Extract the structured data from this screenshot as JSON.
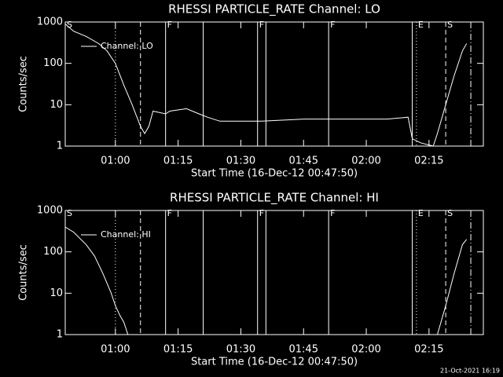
{
  "chart_data": [
    {
      "type": "line",
      "title": "RHESSI PARTICLE_RATE Channel: LO",
      "xlabel": "Start Time (16-Dec-12 00:47:50)",
      "ylabel": "Counts/sec",
      "x": [
        "00:48",
        "00:50",
        "00:53",
        "00:56",
        "00:58",
        "01:00",
        "01:02",
        "01:04",
        "01:06",
        "01:07",
        "01:08",
        "01:09",
        "01:12",
        "01:13",
        "01:17",
        "01:20",
        "01:22",
        "01:25",
        "01:35",
        "01:45",
        "01:55",
        "02:05",
        "02:10",
        "02:11",
        "02:13",
        "02:16",
        "02:17",
        "02:19",
        "02:21",
        "02:23",
        "02:24"
      ],
      "series": [
        {
          "name": "Channel: LO",
          "color": "#ffffff",
          "values": [
            900,
            600,
            450,
            300,
            200,
            100,
            30,
            10,
            3,
            2,
            3,
            7,
            6,
            7,
            8,
            6,
            5,
            4,
            4,
            4.5,
            4.5,
            4.5,
            5,
            1.5,
            1.2,
            1,
            2,
            10,
            50,
            200,
            300
          ]
        }
      ],
      "xlim": [
        "00:48",
        "02:28"
      ],
      "xticks": [
        "01:00",
        "01:15",
        "01:30",
        "01:45",
        "02:00",
        "02:15"
      ],
      "ylim": [
        1,
        1000
      ],
      "yticks": [
        1,
        10,
        100,
        1000
      ],
      "log_y": true,
      "annotations": [
        {
          "x": "00:48",
          "style": "none",
          "label": "S"
        },
        {
          "x": "01:00",
          "style": "dotted"
        },
        {
          "x": "01:06",
          "style": "dashed"
        },
        {
          "x": "01:12",
          "style": "solid",
          "label": "F"
        },
        {
          "x": "01:21",
          "style": "solid"
        },
        {
          "x": "01:34",
          "style": "solid",
          "label": "F"
        },
        {
          "x": "01:36",
          "style": "solid"
        },
        {
          "x": "01:51",
          "style": "solid",
          "label": "F"
        },
        {
          "x": "02:11",
          "style": "solid"
        },
        {
          "x": "02:12",
          "style": "dotted",
          "label": "E"
        },
        {
          "x": "02:19",
          "style": "dashed",
          "label": "S"
        },
        {
          "x": "02:25",
          "style": "dashdot"
        }
      ]
    },
    {
      "type": "line",
      "title": "RHESSI PARTICLE_RATE Channel: HI",
      "xlabel": "Start Time (16-Dec-12 00:47:50)",
      "ylabel": "Counts/sec",
      "x": [
        "00:48",
        "00:50",
        "00:53",
        "00:55",
        "00:57",
        "00:59",
        "01:00",
        "01:01",
        "01:02",
        "01:03",
        "02:00",
        "02:17",
        "02:19",
        "02:21",
        "02:23",
        "02:24"
      ],
      "series": [
        {
          "name": "Channel: HI",
          "color": "#ffffff",
          "values": [
            400,
            300,
            150,
            80,
            30,
            10,
            5,
            3,
            2,
            1,
            null,
            1,
            5,
            30,
            150,
            200
          ]
        }
      ],
      "xlim": [
        "00:48",
        "02:28"
      ],
      "xticks": [
        "01:00",
        "01:15",
        "01:30",
        "01:45",
        "02:00",
        "02:15"
      ],
      "ylim": [
        1,
        1000
      ],
      "yticks": [
        1,
        10,
        100,
        1000
      ],
      "log_y": true,
      "annotations": [
        {
          "x": "00:48",
          "style": "none",
          "label": "S"
        },
        {
          "x": "01:00",
          "style": "dotted"
        },
        {
          "x": "01:06",
          "style": "dashed"
        },
        {
          "x": "01:12",
          "style": "solid",
          "label": "F"
        },
        {
          "x": "01:21",
          "style": "solid"
        },
        {
          "x": "01:34",
          "style": "solid",
          "label": "F"
        },
        {
          "x": "01:36",
          "style": "solid"
        },
        {
          "x": "01:51",
          "style": "solid",
          "label": "F"
        },
        {
          "x": "02:11",
          "style": "solid"
        },
        {
          "x": "02:12",
          "style": "dotted",
          "label": "E"
        },
        {
          "x": "02:19",
          "style": "dashed",
          "label": "S"
        },
        {
          "x": "02:25",
          "style": "dashdot"
        }
      ]
    }
  ],
  "footer": "21-Oct-2021 16:19"
}
